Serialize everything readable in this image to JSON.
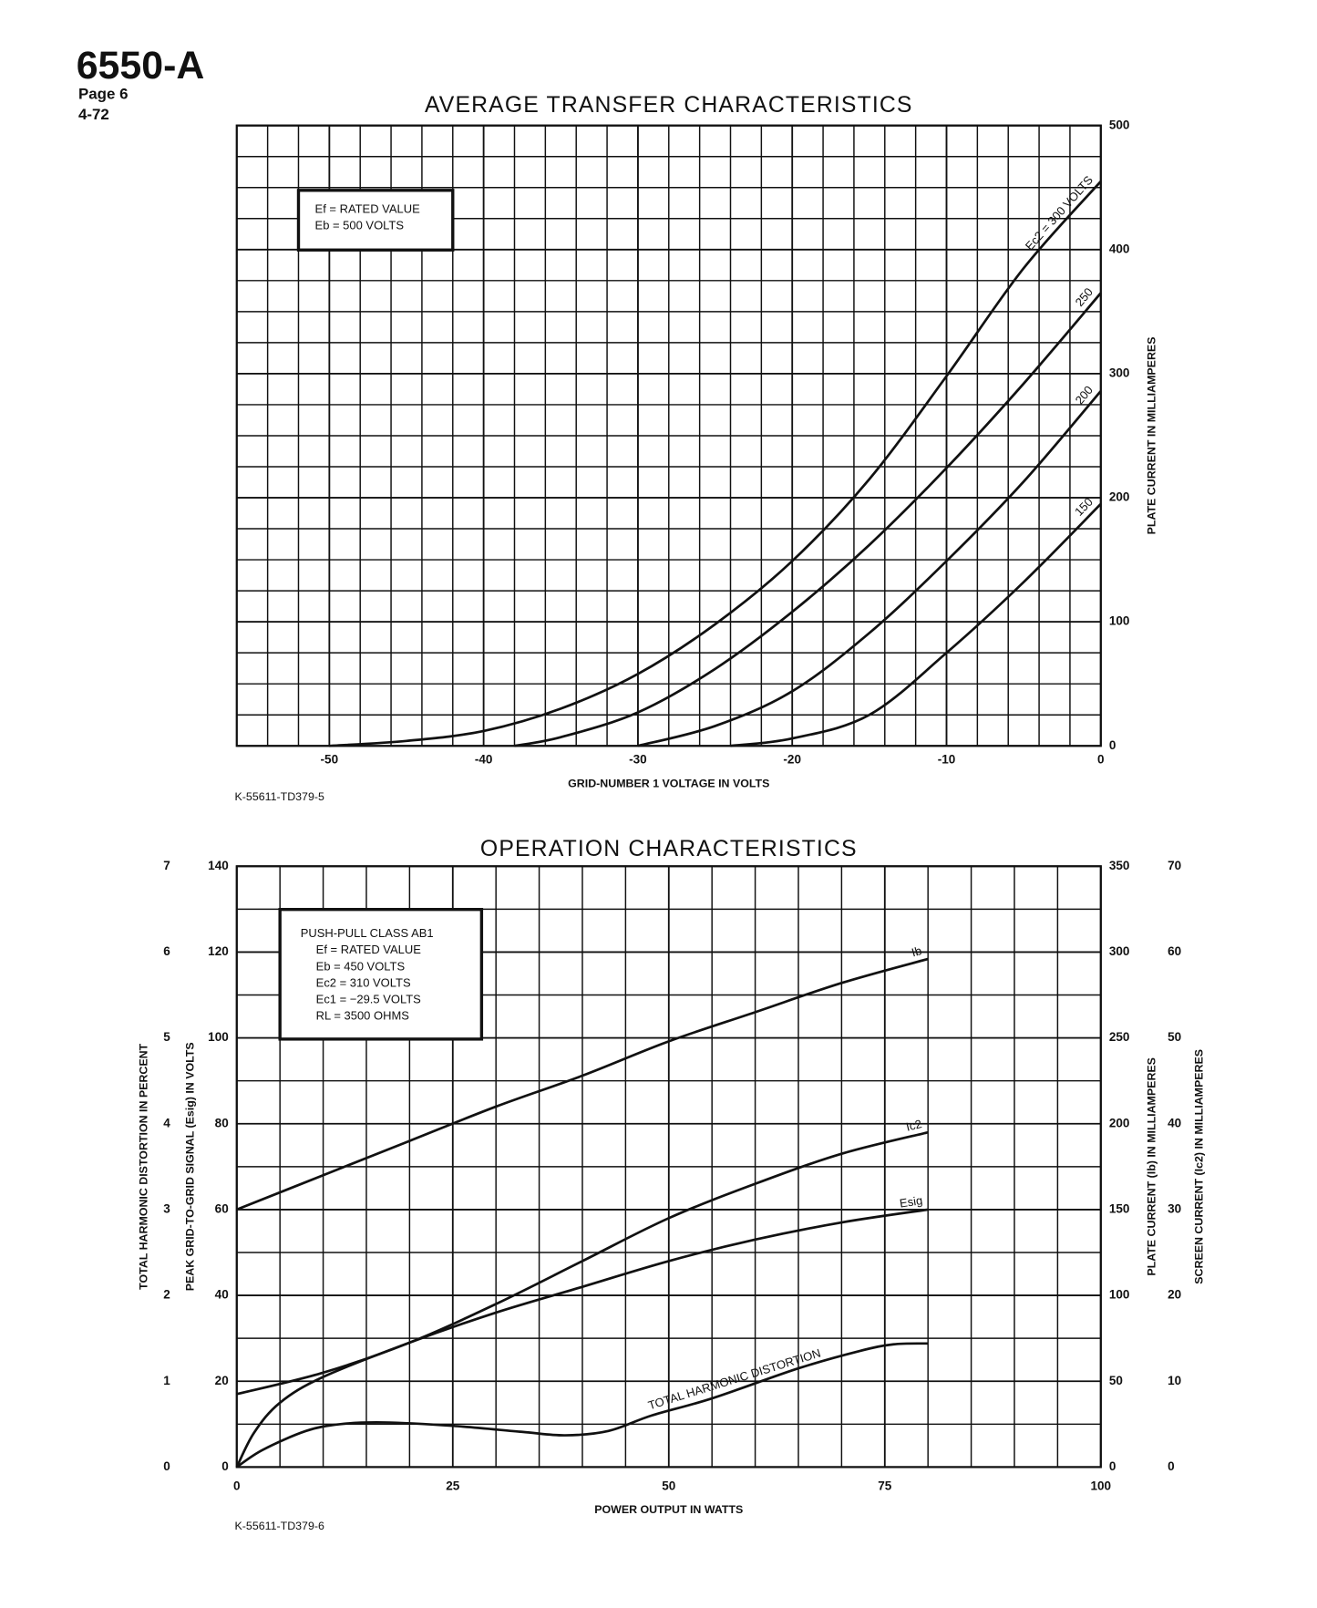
{
  "header": {
    "part": "6550-A",
    "page": "Page 6",
    "date": "4-72"
  },
  "chart_data": [
    {
      "type": "line",
      "title": "AVERAGE TRANSFER CHARACTERISTICS",
      "xlabel": "GRID-NUMBER 1 VOLTAGE IN VOLTS",
      "xlim": [
        -56,
        0
      ],
      "xticks": [
        -50,
        -40,
        -30,
        -20,
        -10,
        0
      ],
      "axes": [
        {
          "label": "PLATE CURRENT IN MILLIAMPERES",
          "lim": [
            0,
            500
          ],
          "ticks": [
            0,
            100,
            200,
            300,
            400,
            500
          ]
        }
      ],
      "grid": true,
      "conditions": [
        "Ef = RATED VALUE",
        "Eb = 500 VOLTS"
      ],
      "figure_code": "K-55611-TD379-5",
      "series": [
        {
          "name": "Ec2 = 300 VOLTS",
          "color": "#111111",
          "axis": 0,
          "x": [
            -50,
            -45,
            -40,
            -35,
            -30,
            -25,
            -20,
            -15,
            -10,
            -5,
            0
          ],
          "values": [
            0,
            4,
            12,
            30,
            58,
            98,
            149,
            215,
            298,
            385,
            455
          ]
        },
        {
          "name": "250",
          "color": "#111111",
          "axis": 0,
          "x": [
            -38,
            -35,
            -30,
            -25,
            -20,
            -15,
            -10,
            -5,
            0
          ],
          "values": [
            0,
            7,
            27,
            62,
            108,
            162,
            224,
            292,
            365
          ]
        },
        {
          "name": "200",
          "color": "#111111",
          "axis": 0,
          "x": [
            -30,
            -25,
            -20,
            -15,
            -10,
            -5,
            0
          ],
          "values": [
            0,
            16,
            44,
            91,
            149,
            213,
            286
          ]
        },
        {
          "name": "150",
          "color": "#111111",
          "axis": 0,
          "x": [
            -24,
            -20,
            -15,
            -10,
            -5,
            0
          ],
          "values": [
            0,
            6,
            25,
            75,
            132,
            195
          ]
        }
      ]
    },
    {
      "type": "line",
      "title": "OPERATION CHARACTERISTICS",
      "xlabel": "POWER OUTPUT IN WATTS",
      "xlim": [
        0,
        100
      ],
      "xticks": [
        0,
        25,
        50,
        75,
        100
      ],
      "axes": [
        {
          "label": "TOTAL HARMONIC DISTORTION IN PERCENT",
          "lim": [
            0,
            7
          ],
          "ticks": [
            0,
            1,
            2,
            3,
            4,
            5,
            6,
            7
          ]
        },
        {
          "label": "PEAK GRID-TO-GRID SIGNAL (Esig) IN VOLTS",
          "lim": [
            0,
            140
          ],
          "ticks": [
            0,
            20,
            40,
            60,
            80,
            100,
            120,
            140
          ]
        },
        {
          "label": "PLATE CURRENT (Ib) IN MILLIAMPERES",
          "lim": [
            0,
            350
          ],
          "ticks": [
            0,
            50,
            100,
            150,
            200,
            250,
            300,
            350
          ]
        },
        {
          "label": "SCREEN CURRENT (Ic2) IN MILLIAMPERES",
          "lim": [
            0,
            70
          ],
          "ticks": [
            0,
            10,
            20,
            30,
            40,
            50,
            60,
            70
          ]
        }
      ],
      "grid": true,
      "conditions": [
        "PUSH-PULL CLASS AB1",
        "Ef = RATED VALUE",
        "Eb = 450 VOLTS",
        "Ec2 = 310 VOLTS",
        "Ec1 = −29.5 VOLTS",
        "RL = 3500 OHMS"
      ],
      "figure_code": "K-55611-TD379-6",
      "series": [
        {
          "name": "Ib",
          "color": "#111111",
          "axis": 2,
          "x": [
            0,
            10,
            20,
            30,
            40,
            50,
            60,
            70,
            80
          ],
          "values": [
            150,
            170,
            190,
            210,
            228,
            248,
            265,
            282,
            296
          ]
        },
        {
          "name": "Ic2",
          "color": "#111111",
          "axis": 3,
          "x": [
            0,
            10,
            20,
            30,
            40,
            50,
            60,
            70,
            80
          ],
          "values": [
            8.5,
            11,
            14.5,
            19,
            24,
            29,
            33,
            36.5,
            39
          ]
        },
        {
          "name": "Esig",
          "color": "#111111",
          "axis": 1,
          "x": [
            0,
            2,
            5,
            10,
            20,
            30,
            40,
            50,
            60,
            70,
            80
          ],
          "values": [
            0,
            8,
            15,
            21,
            29,
            36,
            42,
            48,
            53,
            57,
            60
          ]
        },
        {
          "name": "TOTAL HARMONIC DISTORTION",
          "color": "#111111",
          "axis": 0,
          "x": [
            0,
            3,
            8,
            12,
            17,
            25,
            33,
            38,
            43,
            48,
            55,
            65,
            72,
            76,
            80
          ],
          "values": [
            0,
            0.2,
            0.42,
            0.5,
            0.52,
            0.48,
            0.41,
            0.37,
            0.42,
            0.6,
            0.8,
            1.15,
            1.35,
            1.43,
            1.44
          ]
        }
      ]
    }
  ]
}
